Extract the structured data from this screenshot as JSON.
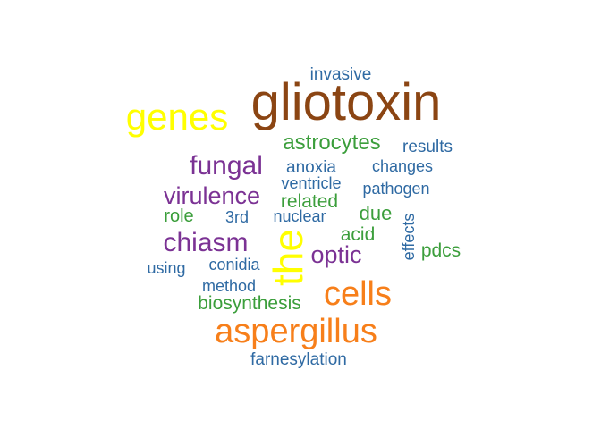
{
  "colors": {
    "purple": "#7b3294",
    "blue": "#2f6aa3",
    "green": "#3b9e3b",
    "orange": "#f77f1a",
    "yellow": "#ffff00",
    "brown": "#8b4513"
  },
  "words": [
    {
      "id": "gliotoxin",
      "text": "gliotoxin",
      "color": "#8b4513",
      "rank": 1
    },
    {
      "id": "genes",
      "text": "genes",
      "color": "#ffff00",
      "rank": 2
    },
    {
      "id": "the",
      "text": "the",
      "color": "#ffff00",
      "rank": 2,
      "vertical": true
    },
    {
      "id": "aspergillus",
      "text": "aspergillus",
      "color": "#f77f1a",
      "rank": 2
    },
    {
      "id": "cells",
      "text": "cells",
      "color": "#f77f1a",
      "rank": 2
    },
    {
      "id": "fungal",
      "text": "fungal",
      "color": "#7b3294",
      "rank": 3
    },
    {
      "id": "chiasm",
      "text": "chiasm",
      "color": "#7b3294",
      "rank": 3
    },
    {
      "id": "virulence",
      "text": "virulence",
      "color": "#7b3294",
      "rank": 3
    },
    {
      "id": "optic",
      "text": "optic",
      "color": "#7b3294",
      "rank": 3
    },
    {
      "id": "astrocytes",
      "text": "astrocytes",
      "color": "#3b9e3b",
      "rank": 4
    },
    {
      "id": "related",
      "text": "related",
      "color": "#3b9e3b",
      "rank": 4
    },
    {
      "id": "due",
      "text": "due",
      "color": "#3b9e3b",
      "rank": 4
    },
    {
      "id": "acid",
      "text": "acid",
      "color": "#3b9e3b",
      "rank": 4
    },
    {
      "id": "pdcs",
      "text": "pdcs",
      "color": "#3b9e3b",
      "rank": 4
    },
    {
      "id": "role",
      "text": "role",
      "color": "#3b9e3b",
      "rank": 4
    },
    {
      "id": "biosynthesis",
      "text": "biosynthesis",
      "color": "#3b9e3b",
      "rank": 4
    },
    {
      "id": "invasive",
      "text": "invasive",
      "color": "#2f6aa3",
      "rank": 5
    },
    {
      "id": "results",
      "text": "results",
      "color": "#2f6aa3",
      "rank": 5
    },
    {
      "id": "anoxia",
      "text": "anoxia",
      "color": "#2f6aa3",
      "rank": 5
    },
    {
      "id": "changes",
      "text": "changes",
      "color": "#2f6aa3",
      "rank": 5
    },
    {
      "id": "ventricle",
      "text": "ventricle",
      "color": "#2f6aa3",
      "rank": 5
    },
    {
      "id": "pathogen",
      "text": "pathogen",
      "color": "#2f6aa3",
      "rank": 5
    },
    {
      "id": "3rd",
      "text": "3rd",
      "color": "#2f6aa3",
      "rank": 5
    },
    {
      "id": "nuclear",
      "text": "nuclear",
      "color": "#2f6aa3",
      "rank": 5
    },
    {
      "id": "effects",
      "text": "effects",
      "color": "#2f6aa3",
      "rank": 5,
      "vertical": true
    },
    {
      "id": "using",
      "text": "using",
      "color": "#2f6aa3",
      "rank": 5
    },
    {
      "id": "conidia",
      "text": "conidia",
      "color": "#2f6aa3",
      "rank": 5
    },
    {
      "id": "method",
      "text": "method",
      "color": "#2f6aa3",
      "rank": 5
    },
    {
      "id": "farnesylation",
      "text": "farnesylation",
      "color": "#2f6aa3",
      "rank": 5
    }
  ]
}
